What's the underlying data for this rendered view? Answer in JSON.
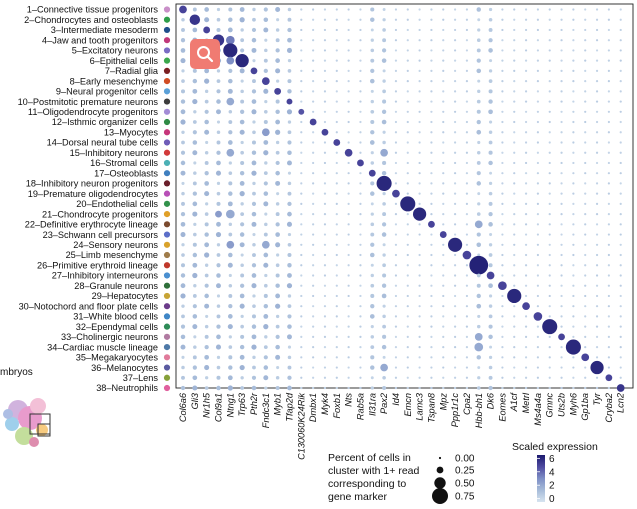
{
  "chart_data": {
    "type": "dot_plot",
    "clusters": [
      "1–Connective tissue progenitors",
      "2–Chondrocytes and osteoblasts",
      "3–Intermediate mesoderm",
      "4–Jaw and tooth progenitors",
      "5–Excitatory neurons",
      "6–Epithelial cells",
      "7–Radial glia",
      "8–Early mesenchyme",
      "9–Neural progenitor cells",
      "10–Postmitotic premature neurons",
      "11–Oligodendrocyte progenitors",
      "12–Isthmic organizer cells",
      "13–Myocytes",
      "14–Dorsal neural tube cells",
      "15–Inhibitory neurons",
      "16–Stromal cells",
      "17–Osteoblasts",
      "18–Inhibitory neuron progenitors",
      "19–Premature oligodendrocytes",
      "20–Endothelial cells",
      "21–Chondrocyte progenitors",
      "22–Definitive erythrocyte lineage",
      "23–Schwann cell precursors",
      "24–Sensory neurons",
      "25–Limb mesenchyme",
      "26–Primitive erythroid lineage",
      "27–Inhibitory interneurons",
      "28–Granule neurons",
      "29–Hepatocytes",
      "30–Notochord and floor plate cells",
      "31–White blood cells",
      "32–Ependymal cells",
      "33–Cholinergic neurons",
      "34–Cardiac muscle lineage",
      "35–Megakaryocytes",
      "36–Melanocytes",
      "37–Lens",
      "38–Neutrophils"
    ],
    "cluster_colors": [
      "#c98fc8",
      "#2e9e4a",
      "#1f4e8c",
      "#c0387a",
      "#7a6cc4",
      "#3aa84c",
      "#7a1f22",
      "#d14d24",
      "#5aa0d8",
      "#3d3d3d",
      "#a38bd6",
      "#2f8a45",
      "#c6357a",
      "#6f5cb8",
      "#d23a3a",
      "#4bb0b5",
      "#3f7fbf",
      "#6a1e2a",
      "#b84fb7",
      "#31914a",
      "#e0a028",
      "#7b4a2e",
      "#5b6ec8",
      "#d9a22b",
      "#a07c4a",
      "#c0392b",
      "#4a8fd0",
      "#2f6f3a",
      "#c7a436",
      "#6b3b8a",
      "#3f86c6",
      "#2e8b57",
      "#b07aa1",
      "#4e79a7",
      "#e07a9a",
      "#5a5aa0",
      "#86a03a",
      "#e0609e"
    ],
    "genes": [
      "Col6a6",
      "Gli3",
      "Nr1h5",
      "Col9a1",
      "Ntng1",
      "Trp63",
      "Pth2r",
      "Fndc3c1",
      "Myb1",
      "Tfap2d",
      "C130060K24Rik",
      "Dmbx1",
      "Myk4",
      "Foxb1",
      "Nts",
      "Rab5a",
      "Il31ra",
      "Pax2",
      "Id4",
      "Emcn",
      "Lamc3",
      "Tspan8",
      "Mpz",
      "Ppp1r1c",
      "Cpa2",
      "Hbb-bh1",
      "Dk6",
      "Eomes",
      "A1cf",
      "Metrl",
      "Ms4a4a",
      "Gmnc",
      "Uts2b",
      "Myh6",
      "Gp1ba",
      "Tyr",
      "Cryba2",
      "Lcn2"
    ],
    "diagonal": [
      {
        "cluster": 1,
        "gene": "Col6a6",
        "pct": 0.3,
        "expr": 5.0
      },
      {
        "cluster": 2,
        "gene": "Gli3",
        "pct": 0.45,
        "expr": 5.5
      },
      {
        "cluster": 3,
        "gene": "Nr1h5",
        "pct": 0.25,
        "expr": 5.0
      },
      {
        "cluster": 4,
        "gene": "Col9a1",
        "pct": 0.5,
        "expr": 5.5
      },
      {
        "cluster": 5,
        "gene": "Ntng1",
        "pct": 0.65,
        "expr": 6.0
      },
      {
        "cluster": 6,
        "gene": "Trp63",
        "pct": 0.6,
        "expr": 6.0
      },
      {
        "cluster": 7,
        "gene": "Pth2r",
        "pct": 0.25,
        "expr": 5.0
      },
      {
        "cluster": 8,
        "gene": "Fndc3c1",
        "pct": 0.3,
        "expr": 5.0
      },
      {
        "cluster": 9,
        "gene": "Myb1",
        "pct": 0.25,
        "expr": 5.0
      },
      {
        "cluster": 10,
        "gene": "Tfap2d",
        "pct": 0.2,
        "expr": 5.0
      },
      {
        "cluster": 11,
        "gene": "C130060K24Rik",
        "pct": 0.2,
        "expr": 4.5
      },
      {
        "cluster": 12,
        "gene": "Dmbx1",
        "pct": 0.25,
        "expr": 5.0
      },
      {
        "cluster": 13,
        "gene": "Myk4",
        "pct": 0.25,
        "expr": 5.0
      },
      {
        "cluster": 14,
        "gene": "Foxb1",
        "pct": 0.25,
        "expr": 5.0
      },
      {
        "cluster": 15,
        "gene": "Nts",
        "pct": 0.3,
        "expr": 5.0
      },
      {
        "cluster": 16,
        "gene": "Rab5a",
        "pct": 0.25,
        "expr": 5.0
      },
      {
        "cluster": 17,
        "gene": "Il31ra",
        "pct": 0.25,
        "expr": 5.0
      },
      {
        "cluster": 18,
        "gene": "Pax2",
        "pct": 0.7,
        "expr": 6.0
      },
      {
        "cluster": 19,
        "gene": "Id4",
        "pct": 0.3,
        "expr": 5.0
      },
      {
        "cluster": 20,
        "gene": "Emcn",
        "pct": 0.7,
        "expr": 6.0
      },
      {
        "cluster": 21,
        "gene": "Lamc3",
        "pct": 0.6,
        "expr": 6.0
      },
      {
        "cluster": 22,
        "gene": "Tspan8",
        "pct": 0.25,
        "expr": 5.0
      },
      {
        "cluster": 23,
        "gene": "Mpz",
        "pct": 0.25,
        "expr": 5.0
      },
      {
        "cluster": 24,
        "gene": "Ppp1r1c",
        "pct": 0.65,
        "expr": 6.0
      },
      {
        "cluster": 25,
        "gene": "Cpa2",
        "pct": 0.35,
        "expr": 5.0
      },
      {
        "cluster": 26,
        "gene": "Hbb-bh1",
        "pct": 0.9,
        "expr": 6.2
      },
      {
        "cluster": 27,
        "gene": "Dk6",
        "pct": 0.3,
        "expr": 5.0
      },
      {
        "cluster": 28,
        "gene": "Eomes",
        "pct": 0.35,
        "expr": 5.0
      },
      {
        "cluster": 29,
        "gene": "A1cf",
        "pct": 0.65,
        "expr": 6.0
      },
      {
        "cluster": 30,
        "gene": "Metrl",
        "pct": 0.3,
        "expr": 5.0
      },
      {
        "cluster": 31,
        "gene": "Ms4a4a",
        "pct": 0.35,
        "expr": 5.0
      },
      {
        "cluster": 32,
        "gene": "Gmnc",
        "pct": 0.7,
        "expr": 6.0
      },
      {
        "cluster": 33,
        "gene": "Uts2b",
        "pct": 0.25,
        "expr": 5.0
      },
      {
        "cluster": 34,
        "gene": "Myh6",
        "pct": 0.7,
        "expr": 6.0
      },
      {
        "cluster": 35,
        "gene": "Gp1ba",
        "pct": 0.3,
        "expr": 5.0
      },
      {
        "cluster": 36,
        "gene": "Tyr",
        "pct": 0.6,
        "expr": 6.0
      },
      {
        "cluster": 37,
        "gene": "Cryba2",
        "pct": 0.25,
        "expr": 5.0
      },
      {
        "cluster": 38,
        "gene": "Lcn2",
        "pct": 0.3,
        "expr": 5.5
      }
    ],
    "notable_off_diagonal": [
      {
        "cluster": 4,
        "gene": "Ntng1",
        "pct": 0.35,
        "expr": 3.5
      },
      {
        "cluster": 6,
        "gene": "Ntng1",
        "pct": 0.3,
        "expr": 3.0
      },
      {
        "cluster": 10,
        "gene": "Ntng1",
        "pct": 0.3,
        "expr": 2.0
      },
      {
        "cluster": 21,
        "gene": "Col9a1",
        "pct": 0.25,
        "expr": 2.5
      },
      {
        "cluster": 21,
        "gene": "Ntng1",
        "pct": 0.35,
        "expr": 2.0
      },
      {
        "cluster": 13,
        "gene": "Fndc3c1",
        "pct": 0.3,
        "expr": 2.5
      },
      {
        "cluster": 15,
        "gene": "Ntng1",
        "pct": 0.3,
        "expr": 2.0
      },
      {
        "cluster": 15,
        "gene": "Pax2",
        "pct": 0.3,
        "expr": 2.0
      },
      {
        "cluster": 24,
        "gene": "Ntng1",
        "pct": 0.3,
        "expr": 2.5
      },
      {
        "cluster": 24,
        "gene": "Fndc3c1",
        "pct": 0.3,
        "expr": 2.0
      },
      {
        "cluster": 36,
        "gene": "Pax2",
        "pct": 0.3,
        "expr": 2.0
      },
      {
        "cluster": 33,
        "gene": "Hbb-bh1",
        "pct": 0.3,
        "expr": 2.0
      },
      {
        "cluster": 34,
        "gene": "Hbb-bh1",
        "pct": 0.35,
        "expr": 2.0
      },
      {
        "cluster": 22,
        "gene": "Hbb-bh1",
        "pct": 0.3,
        "expr": 2.0
      }
    ],
    "size_legend": {
      "title_lines": [
        "Percent of cells in",
        "cluster with 1+ read",
        "corresponding to",
        "gene marker"
      ],
      "values": [
        0.0,
        0.25,
        0.5,
        0.75
      ],
      "labels": [
        "0.00",
        "0.25",
        "0.50",
        "0.75"
      ]
    },
    "color_legend": {
      "title": "Scaled expression",
      "ticks": [
        0,
        2,
        4,
        6
      ],
      "range": [
        -0.5,
        6.5
      ],
      "colors": [
        "#d6e4f0",
        "#a7bcd9",
        "#7e8fc6",
        "#4e4aa0",
        "#1b1a6e"
      ]
    }
  },
  "overlay": {
    "search_button": "search-icon",
    "thumbnail_label": "mbryos"
  }
}
